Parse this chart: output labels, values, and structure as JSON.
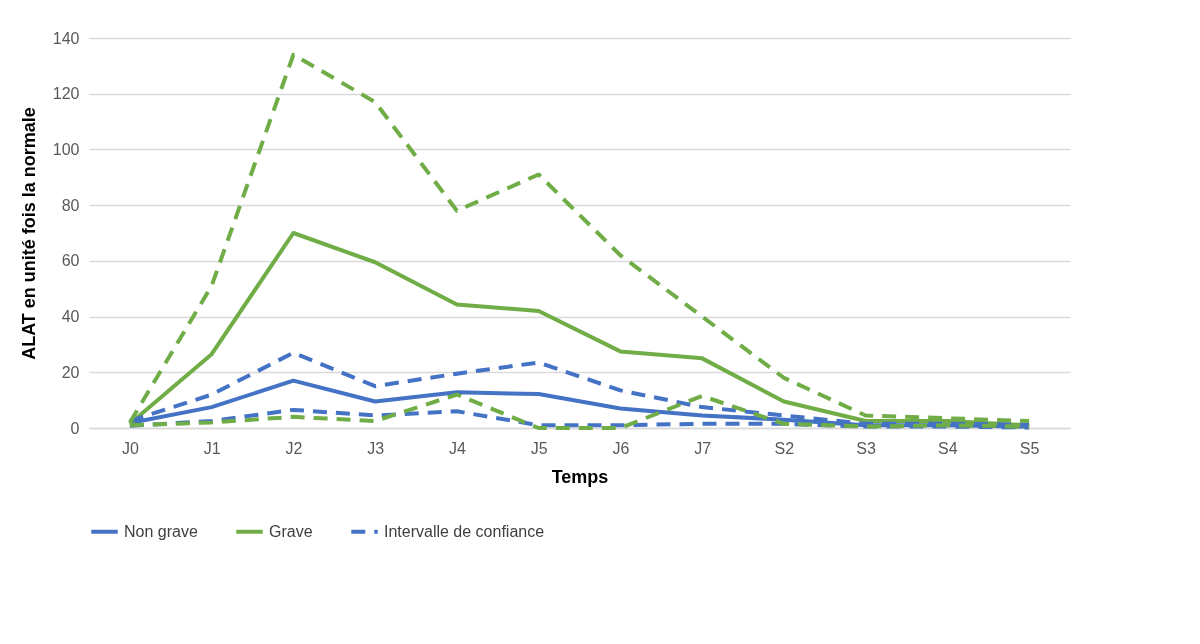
{
  "chart_data": {
    "type": "line",
    "xlabel": "Temps",
    "ylabel": "ALAT en unité fois la normale",
    "categories": [
      "J0",
      "J1",
      "J2",
      "J3",
      "J4",
      "J5",
      "J6",
      "J7",
      "S2",
      "S3",
      "S4",
      "S5"
    ],
    "series": [
      {
        "name": "Non grave",
        "color": "#4472c4",
        "line_style": "solid",
        "values": [
          1.8,
          7.5,
          17,
          9.5,
          12.8,
          12.2,
          7,
          4.5,
          3,
          1,
          1,
          0.5
        ]
      },
      {
        "name": "Grave",
        "color": "#70ad47",
        "line_style": "solid",
        "values": [
          1.5,
          26.5,
          70,
          59.5,
          44.3,
          42,
          27.5,
          25,
          9.5,
          2.5,
          2.5,
          1
        ]
      },
      {
        "name": "Intervalle de confiance",
        "color": "#4472c4",
        "line_style": "dashed",
        "values": [
          2.5,
          12,
          27,
          15,
          19.5,
          23.5,
          13.5,
          7.5,
          4.5,
          1.5,
          1.5,
          1.2
        ]
      },
      {
        "color": "#4472c4",
        "line_style": "dashed",
        "values": [
          0.8,
          2.5,
          6.5,
          4.5,
          6,
          1,
          1,
          1.5,
          1.5,
          0.5,
          0.5,
          0.2
        ]
      },
      {
        "color": "#70ad47",
        "line_style": "dashed",
        "values": [
          2,
          51,
          134,
          117,
          78,
          91,
          62,
          40,
          18,
          4.5,
          3.5,
          2.5
        ]
      },
      {
        "color": "#70ad47",
        "line_style": "dashed",
        "values": [
          1,
          2,
          4,
          2.5,
          12,
          0,
          0,
          11.5,
          1.5,
          0.5,
          1,
          0.5
        ]
      }
    ],
    "ylim": [
      0,
      140
    ],
    "yticks": [
      0,
      20,
      40,
      60,
      80,
      100,
      120,
      140
    ],
    "grid": "y",
    "legend": "bottom"
  }
}
